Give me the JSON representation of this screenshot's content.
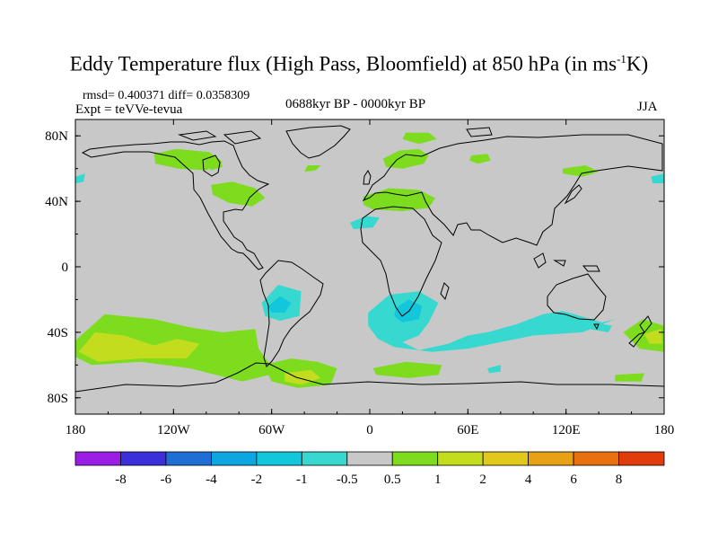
{
  "title": {
    "prefix": "Eddy Temperature flux (High Pass, Bloomfield) at 850 hPa (in ms",
    "sup": "-1",
    "suffix": "K)"
  },
  "stats": "rmsd= 0.400371  diff= 0.0358309",
  "expt": "Expt = teVVe-tevua",
  "period": "0688kyr BP - 0000kyr BP",
  "season": "JJA",
  "map": {
    "projection": "cylindrical-equidistant",
    "lon_range": [
      -180,
      180
    ],
    "lat_range": [
      -90,
      90
    ],
    "background_color": "#c8c8c8",
    "lat_ticks": [
      {
        "v": 80,
        "label": "80N"
      },
      {
        "v": 40,
        "label": "40N"
      },
      {
        "v": 0,
        "label": "0"
      },
      {
        "v": -40,
        "label": "40S"
      },
      {
        "v": -80,
        "label": "80S"
      }
    ],
    "lon_ticks": [
      {
        "v": -180,
        "label": "180"
      },
      {
        "v": -120,
        "label": "120W"
      },
      {
        "v": -60,
        "label": "60W"
      },
      {
        "v": 0,
        "label": "0"
      },
      {
        "v": 60,
        "label": "60E"
      },
      {
        "v": 120,
        "label": "120E"
      },
      {
        "v": 180,
        "label": "180"
      }
    ]
  },
  "colorbar": {
    "colors": [
      "#9a1ee6",
      "#3a2fd8",
      "#1e6ed6",
      "#0ea6e0",
      "#12c6dc",
      "#36d8d0",
      "#c8c8c8",
      "#7ddc1e",
      "#c4dc1e",
      "#e2c81a",
      "#e8a014",
      "#e8700e",
      "#e03c0c"
    ],
    "labels": [
      "-8",
      "-6",
      "-4",
      "-2",
      "-1",
      "-0.5",
      "0.5",
      "1",
      "2",
      "4",
      "6",
      "8"
    ]
  },
  "anomalies": [
    {
      "name": "n-america-north-pos",
      "color": "#7ddc1e",
      "pts": [
        [
          -132,
          69
        ],
        [
          -118,
          72
        ],
        [
          -98,
          70
        ],
        [
          -90,
          64
        ],
        [
          -100,
          59
        ],
        [
          -117,
          60
        ],
        [
          -131,
          63
        ]
      ]
    },
    {
      "name": "hudson-region-pos",
      "color": "#7ddc1e",
      "pts": [
        [
          -100,
          64
        ],
        [
          -92,
          66
        ],
        [
          -90,
          61
        ],
        [
          -97,
          59
        ]
      ]
    },
    {
      "name": "great-lakes-pos",
      "color": "#7ddc1e",
      "pts": [
        [
          -97,
          50
        ],
        [
          -84,
          52
        ],
        [
          -70,
          48
        ],
        [
          -64,
          42
        ],
        [
          -72,
          37
        ],
        [
          -86,
          39
        ],
        [
          -96,
          44
        ]
      ]
    },
    {
      "name": "greenland-east-pos",
      "color": "#7ddc1e",
      "pts": [
        [
          -38,
          62
        ],
        [
          -30,
          62
        ],
        [
          -33,
          59
        ],
        [
          -40,
          58
        ]
      ]
    },
    {
      "name": "north-atlantic-pos",
      "color": "#7ddc1e",
      "pts": [
        [
          22,
          82
        ],
        [
          36,
          82
        ],
        [
          41,
          78
        ],
        [
          30,
          75
        ],
        [
          20,
          78
        ]
      ]
    },
    {
      "name": "scandinavia-pos",
      "color": "#7ddc1e",
      "pts": [
        [
          8,
          66
        ],
        [
          18,
          71
        ],
        [
          30,
          72
        ],
        [
          36,
          68
        ],
        [
          33,
          63
        ],
        [
          20,
          60
        ],
        [
          10,
          61
        ]
      ]
    },
    {
      "name": "mediterranean-pos",
      "color": "#7ddc1e",
      "pts": [
        [
          -4,
          43
        ],
        [
          12,
          48
        ],
        [
          30,
          47
        ],
        [
          40,
          42
        ],
        [
          36,
          36
        ],
        [
          20,
          34
        ],
        [
          2,
          35
        ],
        [
          -4,
          38
        ]
      ]
    },
    {
      "name": "west-siberia-pos",
      "color": "#7ddc1e",
      "pts": [
        [
          62,
          68
        ],
        [
          72,
          69
        ],
        [
          74,
          65
        ],
        [
          66,
          63
        ],
        [
          61,
          65
        ]
      ]
    },
    {
      "name": "east-siberia-pos",
      "color": "#7ddc1e",
      "pts": [
        [
          118,
          60
        ],
        [
          132,
          62
        ],
        [
          140,
          58
        ],
        [
          130,
          55
        ],
        [
          118,
          57
        ]
      ]
    },
    {
      "name": "s-pacific-belt-pos",
      "color": "#7ddc1e",
      "pts": [
        [
          -180,
          -45
        ],
        [
          -162,
          -29
        ],
        [
          -132,
          -32
        ],
        [
          -110,
          -37
        ],
        [
          -90,
          -40
        ],
        [
          -70,
          -38
        ],
        [
          -68,
          -50
        ],
        [
          -57,
          -65
        ],
        [
          -78,
          -70
        ],
        [
          -110,
          -62
        ],
        [
          -140,
          -58
        ],
        [
          -170,
          -60
        ],
        [
          -180,
          -55
        ]
      ]
    },
    {
      "name": "s-pacific-belt-yellow",
      "color": "#c4dc1e",
      "pts": [
        [
          -178,
          -52
        ],
        [
          -168,
          -40
        ],
        [
          -150,
          -42
        ],
        [
          -132,
          -48
        ],
        [
          -118,
          -44
        ],
        [
          -104,
          -47
        ],
        [
          -112,
          -56
        ],
        [
          -140,
          -56
        ],
        [
          -166,
          -58
        ]
      ]
    },
    {
      "name": "south-atlantic-pos",
      "color": "#7ddc1e",
      "pts": [
        [
          -65,
          -60
        ],
        [
          -48,
          -56
        ],
        [
          -32,
          -58
        ],
        [
          -20,
          -62
        ],
        [
          -24,
          -72
        ],
        [
          -44,
          -74
        ],
        [
          -60,
          -70
        ]
      ]
    },
    {
      "name": "south-atlantic-yellow",
      "color": "#c4dc1e",
      "pts": [
        [
          -52,
          -65
        ],
        [
          -36,
          -63
        ],
        [
          -30,
          -68
        ],
        [
          -42,
          -72
        ],
        [
          -52,
          -70
        ]
      ]
    },
    {
      "name": "s-indian-ocean-pos",
      "color": "#7ddc1e",
      "pts": [
        [
          2,
          -62
        ],
        [
          22,
          -58
        ],
        [
          44,
          -60
        ],
        [
          42,
          -66
        ],
        [
          24,
          -68
        ],
        [
          4,
          -66
        ]
      ]
    },
    {
      "name": "new-zealand-pos",
      "color": "#7ddc1e",
      "pts": [
        [
          155,
          -40
        ],
        [
          167,
          -32
        ],
        [
          180,
          -36
        ],
        [
          180,
          -52
        ],
        [
          165,
          -50
        ]
      ]
    },
    {
      "name": "new-zealand-yellow",
      "color": "#c4dc1e",
      "pts": [
        [
          168,
          -41
        ],
        [
          178,
          -38
        ],
        [
          179,
          -47
        ],
        [
          171,
          -47
        ]
      ]
    },
    {
      "name": "ross-sea-pos",
      "color": "#7ddc1e",
      "pts": [
        [
          150,
          -66
        ],
        [
          168,
          -65
        ],
        [
          166,
          -70
        ],
        [
          150,
          -70
        ]
      ]
    },
    {
      "name": "pacific-east-neg",
      "color": "#36d8d0",
      "pts": [
        [
          -180,
          55
        ],
        [
          -174,
          57
        ],
        [
          -175,
          52
        ],
        [
          -180,
          51
        ]
      ]
    },
    {
      "name": "pacific-west-neg",
      "color": "#36d8d0",
      "pts": [
        [
          172,
          55
        ],
        [
          180,
          57
        ],
        [
          180,
          51
        ],
        [
          173,
          51
        ]
      ]
    },
    {
      "name": "north-africa-neg",
      "color": "#36d8d0",
      "pts": [
        [
          -12,
          27
        ],
        [
          -2,
          31
        ],
        [
          6,
          30
        ],
        [
          2,
          24
        ],
        [
          -10,
          23
        ]
      ]
    },
    {
      "name": "south-america-neg",
      "color": "#36d8d0",
      "pts": [
        [
          -66,
          -22
        ],
        [
          -56,
          -11
        ],
        [
          -42,
          -15
        ],
        [
          -43,
          -30
        ],
        [
          -55,
          -33
        ],
        [
          -64,
          -30
        ]
      ]
    },
    {
      "name": "south-america-neg-inner",
      "color": "#12c6dc",
      "pts": [
        [
          -62,
          -24
        ],
        [
          -55,
          -18
        ],
        [
          -48,
          -22
        ],
        [
          -52,
          -28
        ],
        [
          -60,
          -28
        ]
      ]
    },
    {
      "name": "southern-africa-neg",
      "color": "#36d8d0",
      "pts": [
        [
          -1,
          -28
        ],
        [
          12,
          -17
        ],
        [
          30,
          -15
        ],
        [
          42,
          -22
        ],
        [
          36,
          -34
        ],
        [
          30,
          -42
        ],
        [
          20,
          -46
        ],
        [
          30,
          -51
        ],
        [
          48,
          -47
        ],
        [
          60,
          -42
        ],
        [
          72,
          -40
        ],
        [
          90,
          -35
        ],
        [
          106,
          -29
        ],
        [
          118,
          -27
        ],
        [
          142,
          -34
        ],
        [
          150,
          -32
        ],
        [
          130,
          -40
        ],
        [
          100,
          -42
        ],
        [
          80,
          -46
        ],
        [
          60,
          -50
        ],
        [
          38,
          -52
        ],
        [
          15,
          -49
        ],
        [
          5,
          -44
        ],
        [
          -1,
          -36
        ]
      ]
    },
    {
      "name": "southern-africa-neg-inner",
      "color": "#12c6dc",
      "pts": [
        [
          16,
          -25
        ],
        [
          24,
          -20
        ],
        [
          32,
          -24
        ],
        [
          30,
          -32
        ],
        [
          20,
          -34
        ],
        [
          15,
          -30
        ]
      ]
    },
    {
      "name": "australia-south-neg",
      "color": "#36d8d0",
      "pts": [
        [
          120,
          -34
        ],
        [
          134,
          -38
        ],
        [
          146,
          -40
        ],
        [
          148,
          -36
        ],
        [
          132,
          -33
        ]
      ]
    },
    {
      "name": "kerguelen-neg",
      "color": "#36d8d0",
      "pts": [
        [
          72,
          -62
        ],
        [
          80,
          -60
        ],
        [
          80,
          -64
        ],
        [
          73,
          -65
        ]
      ]
    }
  ]
}
